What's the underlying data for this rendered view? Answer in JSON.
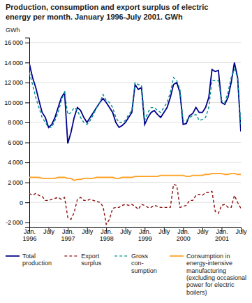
{
  "chart_data": {
    "type": "line",
    "title": "Production, consumption and export surplus of electric\nenergy per month. January 1996-July 2001. GWh",
    "ylabel": "GWh",
    "categories": [
      "Jan.\n1996",
      null,
      null,
      null,
      null,
      null,
      "July",
      null,
      null,
      null,
      null,
      null,
      "Jan.\n1997",
      null,
      null,
      null,
      null,
      null,
      "July",
      null,
      null,
      null,
      null,
      null,
      "Jan.\n1998",
      null,
      null,
      null,
      null,
      null,
      "July",
      null,
      null,
      null,
      null,
      null,
      "Jan.\n1999",
      null,
      null,
      null,
      null,
      null,
      "July",
      null,
      null,
      null,
      null,
      null,
      "Jan.\n2000",
      null,
      null,
      null,
      null,
      null,
      "July",
      null,
      null,
      null,
      null,
      null,
      "Jan.\n2001",
      null,
      null,
      null,
      null,
      null,
      "July"
    ],
    "series": [
      {
        "name": "Total\nproduction",
        "color": "#00008B",
        "line_style": "solid",
        "values": [
          13900,
          12500,
          11500,
          10200,
          9000,
          8500,
          7500,
          7800,
          8500,
          9500,
          10500,
          11000,
          5900,
          7000,
          8500,
          9500,
          9200,
          8500,
          8000,
          8500,
          9000,
          9500,
          10000,
          10400,
          10000,
          9500,
          9000,
          8000,
          7500,
          7700,
          8000,
          8500,
          9000,
          11800,
          11300,
          11500,
          7800,
          8500,
          9000,
          9200,
          8800,
          8500,
          9000,
          9500,
          10500,
          11800,
          12000,
          11000,
          7800,
          7900,
          8700,
          8900,
          9500,
          9000,
          9000,
          9500,
          10500,
          13300,
          13100,
          13200,
          10000,
          9800,
          10500,
          12000,
          14000,
          12500,
          7100
        ]
      },
      {
        "name": "Export\nsurplus",
        "color": "#8B1010",
        "line_style": "dashed",
        "values": [
          900,
          700,
          900,
          700,
          600,
          200,
          200,
          300,
          400,
          500,
          300,
          500,
          -1500,
          -1700,
          -1000,
          300,
          500,
          200,
          200,
          300,
          200,
          100,
          0,
          -400,
          -2200,
          -1700,
          -600,
          -500,
          -500,
          -300,
          -200,
          -300,
          -200,
          -400,
          -700,
          -200,
          -300,
          -500,
          -500,
          -300,
          -400,
          -500,
          -500,
          -500,
          -500,
          1800,
          1700,
          -500,
          -400,
          -300,
          200,
          200,
          700,
          800,
          700,
          1000,
          1000,
          1100,
          -900,
          -1100,
          -300,
          -200,
          -500,
          -500,
          700,
          0,
          -600
        ]
      },
      {
        "name": "Gross\ncon-\nsumption",
        "color": "#009090",
        "line_style": "dashed",
        "values": [
          13000,
          11800,
          10500,
          9500,
          8500,
          8000,
          7500,
          7500,
          8200,
          9000,
          10200,
          11000,
          8800,
          9000,
          9500,
          9200,
          8500,
          8000,
          7800,
          8200,
          8800,
          9500,
          10000,
          10800,
          10200,
          10000,
          9500,
          8500,
          8000,
          8000,
          8200,
          8800,
          9200,
          12000,
          11800,
          11700,
          8200,
          9000,
          9500,
          9500,
          9200,
          9000,
          9500,
          10000,
          11000,
          12500,
          12200,
          11300,
          8200,
          8200,
          8500,
          8700,
          8800,
          8200,
          8300,
          8500,
          9500,
          12200,
          12200,
          12200,
          10200,
          10000,
          11000,
          12500,
          13300,
          12500,
          7800
        ]
      },
      {
        "name": "Consumption in\nenergy-intensive\nmanufacturing\n(excluding occasional\npower for electric\nboilers)",
        "color": "#FFA020",
        "line_style": "solid",
        "values": [
          2500,
          2500,
          2500,
          2500,
          2400,
          2400,
          2400,
          2400,
          2400,
          2500,
          2500,
          2500,
          2400,
          2400,
          2200,
          2300,
          2300,
          2400,
          2400,
          2400,
          2400,
          2500,
          2500,
          2500,
          2500,
          2500,
          2500,
          2400,
          2400,
          2500,
          2500,
          2500,
          2500,
          2600,
          2600,
          2600,
          2600,
          2600,
          2600,
          2600,
          2600,
          2700,
          2700,
          2700,
          2700,
          2700,
          2700,
          2700,
          2700,
          2600,
          2600,
          2700,
          2700,
          2700,
          2700,
          2800,
          2800,
          2900,
          2900,
          2900,
          2900,
          2800,
          2800,
          2900,
          2900,
          2800,
          2800
        ]
      }
    ],
    "ylim": [
      -2500,
      16500
    ],
    "yticks": [
      {
        "value": -2000,
        "label": "-2 000"
      },
      0,
      {
        "value": 2000,
        "label": "2 000"
      },
      {
        "value": 4000,
        "label": "4 000"
      },
      {
        "value": 6000,
        "label": "6 000"
      },
      {
        "value": 8000,
        "label": "8 000"
      },
      {
        "value": 10000,
        "label": "10 000"
      },
      {
        "value": 12000,
        "label": "12 000"
      },
      {
        "value": 14000,
        "label": "14 000"
      },
      {
        "value": 16000,
        "label": "16 000"
      }
    ],
    "grid": true
  }
}
